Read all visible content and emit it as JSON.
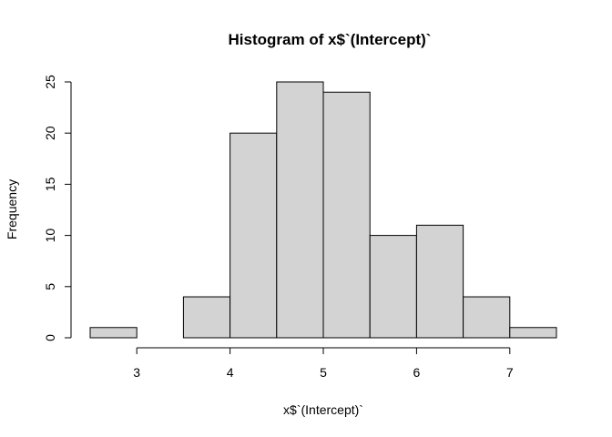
{
  "chart_data": {
    "type": "bar",
    "title": "Histogram of x$`(Intercept)`",
    "xlabel": "x$`(Intercept)`",
    "ylabel": "Frequency",
    "bins": [
      {
        "start": 2.5,
        "end": 3.0,
        "count": 1
      },
      {
        "start": 3.0,
        "end": 3.5,
        "count": 0
      },
      {
        "start": 3.5,
        "end": 4.0,
        "count": 4
      },
      {
        "start": 4.0,
        "end": 4.5,
        "count": 20
      },
      {
        "start": 4.5,
        "end": 5.0,
        "count": 25
      },
      {
        "start": 5.0,
        "end": 5.5,
        "count": 24
      },
      {
        "start": 5.5,
        "end": 6.0,
        "count": 10
      },
      {
        "start": 6.0,
        "end": 6.5,
        "count": 11
      },
      {
        "start": 6.5,
        "end": 7.0,
        "count": 4
      },
      {
        "start": 7.0,
        "end": 7.5,
        "count": 1
      }
    ],
    "x_ticks": [
      3,
      4,
      5,
      6,
      7
    ],
    "y_ticks": [
      0,
      5,
      10,
      15,
      20,
      25
    ],
    "xlim": [
      2.5,
      7.5
    ],
    "ylim": [
      0,
      25
    ],
    "bar_color": "#d3d3d3",
    "grid": false
  }
}
